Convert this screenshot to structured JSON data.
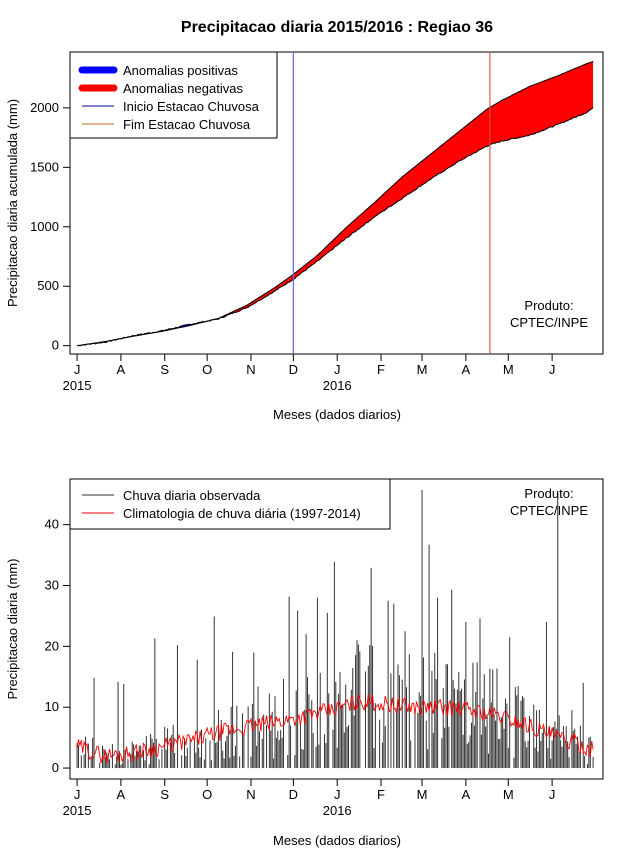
{
  "figure": {
    "title": "Precipitacao diaria 2015/2016 : Regiao 36",
    "product_line1": "Produto:",
    "product_line2": "CPTEC/INPE"
  },
  "chart_data": [
    {
      "type": "area",
      "xlabel": "Meses (dados diarios)",
      "ylabel": "Precipitacao diaria acumulada (mm)",
      "xlim": [
        -5,
        372
      ],
      "ylim": [
        -70,
        2470
      ],
      "y_ticks": [
        0,
        500,
        1000,
        1500,
        2000
      ],
      "month_ticks": [
        {
          "day": 0,
          "label": "J"
        },
        {
          "day": 31,
          "label": "A"
        },
        {
          "day": 62,
          "label": "S"
        },
        {
          "day": 92,
          "label": "O"
        },
        {
          "day": 123,
          "label": "N"
        },
        {
          "day": 153,
          "label": "D"
        },
        {
          "day": 184,
          "label": "J"
        },
        {
          "day": 215,
          "label": "F"
        },
        {
          "day": 244,
          "label": "M"
        },
        {
          "day": 275,
          "label": "A"
        },
        {
          "day": 305,
          "label": "M"
        },
        {
          "day": 336,
          "label": "J"
        }
      ],
      "year_labels": [
        {
          "day": 0,
          "label": "2015"
        },
        {
          "day": 184,
          "label": "2016"
        }
      ],
      "climatology_accumulated": {
        "x": [
          0,
          20,
          40,
          60,
          80,
          100,
          120,
          140,
          153,
          170,
          190,
          210,
          230,
          250,
          270,
          290,
          300,
          320,
          340,
          360,
          365
        ],
        "y": [
          0,
          35,
          80,
          120,
          170,
          230,
          340,
          490,
          600,
          760,
          990,
          1200,
          1420,
          1610,
          1800,
          1990,
          2060,
          2180,
          2270,
          2370,
          2390
        ]
      },
      "observed_accumulated": {
        "x": [
          0,
          20,
          40,
          60,
          80,
          100,
          120,
          140,
          153,
          170,
          190,
          210,
          230,
          250,
          270,
          290,
          300,
          320,
          340,
          360,
          365
        ],
        "y": [
          0,
          30,
          85,
          125,
          180,
          225,
          320,
          460,
          560,
          710,
          900,
          1080,
          1240,
          1400,
          1550,
          1680,
          1720,
          1770,
          1860,
          1960,
          2000
        ]
      },
      "legend": [
        {
          "label": "Anomalias positivas",
          "color": "#0000ff",
          "style": "thick"
        },
        {
          "label": "Anomalias negativas",
          "color": "#ff0000",
          "style": "thick"
        },
        {
          "label": "Inicio Estacao Chuvosa",
          "color": "#00008b",
          "style": "thin"
        },
        {
          "label": "Fim Estacao Chuvosa",
          "color": "#d2691e",
          "style": "thin"
        }
      ],
      "season_start_day": 153,
      "season_end_day": 292
    },
    {
      "type": "line",
      "xlabel": "Meses (dados diarios)",
      "ylabel": "Precipitacao diaria (mm)",
      "xlim": [
        -5,
        372
      ],
      "ylim": [
        -1.8,
        47.5
      ],
      "y_ticks": [
        0,
        10,
        20,
        30,
        40
      ],
      "series": [
        {
          "name": "Chuva diaria observada",
          "color": "#333333",
          "style": "spikes"
        },
        {
          "name": "Climatologia de chuva diária (1997-2014)",
          "color": "#ff0000",
          "style": "line"
        }
      ],
      "climatology_daily": {
        "x": [
          0,
          20,
          40,
          60,
          80,
          100,
          120,
          140,
          160,
          180,
          200,
          220,
          240,
          260,
          280,
          300,
          320,
          340,
          360,
          365
        ],
        "y": [
          3.5,
          2.0,
          2.5,
          3.5,
          4.5,
          5.8,
          6.8,
          7.5,
          8.5,
          9.5,
          11.0,
          10.5,
          10.0,
          10.0,
          9.5,
          8.5,
          7.0,
          5.0,
          3.5,
          3.0
        ]
      },
      "observed_peaks": [
        {
          "day": 12,
          "value": 14.8
        },
        {
          "day": 29,
          "value": 14.2
        },
        {
          "day": 33,
          "value": 13.8
        },
        {
          "day": 55,
          "value": 21.3
        },
        {
          "day": 71,
          "value": 20.2
        },
        {
          "day": 85,
          "value": 17.8
        },
        {
          "day": 97,
          "value": 24.9
        },
        {
          "day": 110,
          "value": 19.1
        },
        {
          "day": 125,
          "value": 19.0
        },
        {
          "day": 150,
          "value": 28.2
        },
        {
          "day": 156,
          "value": 25.9
        },
        {
          "day": 162,
          "value": 22.0
        },
        {
          "day": 170,
          "value": 28.0
        },
        {
          "day": 177,
          "value": 25.5
        },
        {
          "day": 182,
          "value": 33.9
        },
        {
          "day": 198,
          "value": 21.0
        },
        {
          "day": 208,
          "value": 32.9
        },
        {
          "day": 220,
          "value": 27.5
        },
        {
          "day": 224,
          "value": 27.0
        },
        {
          "day": 232,
          "value": 22.5
        },
        {
          "day": 244,
          "value": 45.7
        },
        {
          "day": 249,
          "value": 36.7
        },
        {
          "day": 255,
          "value": 28.0
        },
        {
          "day": 265,
          "value": 29.3
        },
        {
          "day": 275,
          "value": 24.0
        },
        {
          "day": 285,
          "value": 24.6
        },
        {
          "day": 306,
          "value": 21.5
        },
        {
          "day": 325,
          "value": 9.5
        },
        {
          "day": 332,
          "value": 24.0
        },
        {
          "day": 340,
          "value": 45.1
        },
        {
          "day": 350,
          "value": 9.5
        },
        {
          "day": 358,
          "value": 14.0
        }
      ]
    }
  ]
}
